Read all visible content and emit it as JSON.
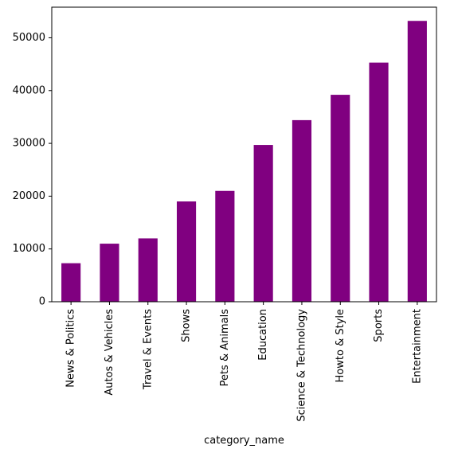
{
  "chart_data": {
    "type": "bar",
    "title": "",
    "xlabel": "category_name",
    "ylabel": "",
    "categories": [
      "News & Politics",
      "Autos & Vehicles",
      "Travel & Events",
      "Shows",
      "Pets & Animals",
      "Education",
      "Science & Technology",
      "Howto & Style",
      "Sports",
      "Entertainment"
    ],
    "values": [
      7300,
      11000,
      12000,
      19000,
      21000,
      29700,
      34400,
      39200,
      45300,
      53200
    ],
    "ylim": [
      0,
      55800
    ],
    "yticks": [
      0,
      10000,
      20000,
      30000,
      40000,
      50000
    ],
    "grid": false,
    "bar_color": "#800080"
  }
}
